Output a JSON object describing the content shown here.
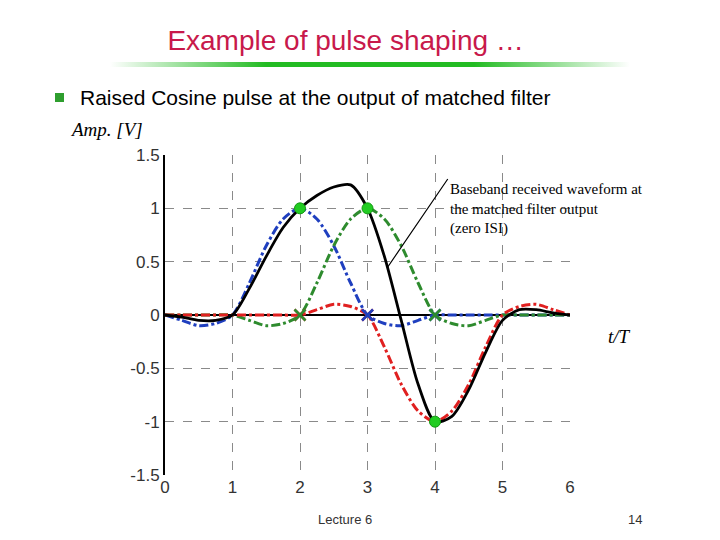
{
  "chart_data": {
    "type": "line",
    "title": "Example of pulse shaping …",
    "subtitle": "Raised Cosine pulse at the output of matched filter",
    "xlabel": "t/T",
    "ylabel": "Amp. [V]",
    "x": [
      0,
      0.25,
      0.5,
      0.75,
      1,
      1.25,
      1.5,
      1.75,
      2,
      2.25,
      2.5,
      2.75,
      3,
      3.25,
      3.5,
      3.75,
      4,
      4.25,
      4.5,
      4.75,
      5,
      5.25,
      5.5,
      5.75,
      6
    ],
    "series": [
      {
        "type": "line",
        "color": "#1f3fbf",
        "line_style": "dashdot",
        "values": [
          0,
          -0.05,
          -0.1,
          -0.08,
          0,
          0.3,
          0.65,
          0.9,
          1,
          0.9,
          0.65,
          0.3,
          0,
          -0.08,
          -0.1,
          -0.05,
          0,
          0,
          0,
          0,
          0,
          0,
          0,
          0,
          0
        ]
      },
      {
        "type": "line",
        "color": "#2e8b2e",
        "line_style": "dashdot",
        "values": [
          0,
          0,
          0,
          0,
          0,
          -0.05,
          -0.1,
          -0.08,
          0,
          0.3,
          0.65,
          0.9,
          1,
          0.9,
          0.65,
          0.3,
          0,
          -0.08,
          -0.1,
          -0.05,
          0,
          0,
          0,
          0,
          0
        ]
      },
      {
        "type": "line",
        "color": "#e02020",
        "line_style": "dashdot",
        "values": [
          0,
          0,
          0,
          0,
          0,
          0,
          0,
          0,
          0,
          0.05,
          0.1,
          0.08,
          0,
          -0.3,
          -0.65,
          -0.9,
          -1,
          -0.9,
          -0.65,
          -0.3,
          0,
          0.08,
          0.1,
          0.05,
          0
        ]
      },
      {
        "type": "line",
        "color": "#000000",
        "line_style": "solid",
        "values": [
          0,
          -0.02,
          -0.05,
          -0.05,
          0,
          0.25,
          0.55,
          0.82,
          1,
          1.12,
          1.2,
          1.22,
          1,
          0.55,
          -0.05,
          -0.65,
          -1,
          -0.95,
          -0.7,
          -0.35,
          -0.05,
          0.05,
          0.05,
          0.02,
          0
        ]
      },
      {
        "type": "scatter",
        "marker": "x",
        "x": [
          2,
          3,
          3,
          4,
          2,
          4
        ],
        "values": [
          0,
          0,
          0,
          0,
          0,
          0
        ],
        "colors": [
          "#e02020",
          "#e02020",
          "#1f3fbf",
          "#1f3fbf",
          "#2e8b2e",
          "#2e8b2e"
        ]
      },
      {
        "type": "scatter",
        "marker": "circle",
        "color": "#22cc22",
        "x": [
          2,
          3,
          4
        ],
        "values": [
          1,
          1,
          -1
        ]
      }
    ],
    "xlim": [
      0,
      6
    ],
    "xticks": [
      0,
      1,
      2,
      3,
      4,
      5,
      6
    ],
    "ylim": [
      -1.5,
      1.5
    ],
    "yticks": [
      -1.5,
      -1,
      -0.5,
      0,
      0.5,
      1,
      1.5
    ],
    "grid": true,
    "annotations": [
      {
        "text": [
          "Baseband received waveform at",
          "the matched filter output",
          "(zero ISI)"
        ],
        "x": 3.3,
        "y": 0.45
      }
    ],
    "footer": {
      "left": "Lecture 6",
      "right": "14"
    }
  }
}
